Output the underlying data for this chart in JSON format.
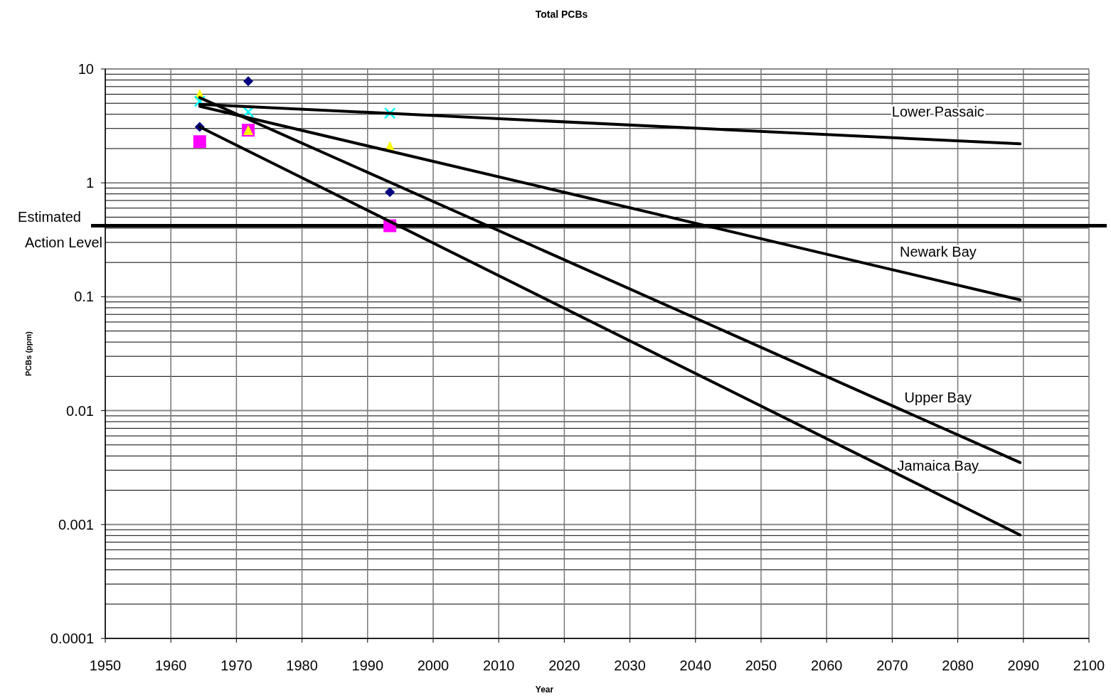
{
  "chart_data": {
    "type": "scatter",
    "title": "Total PCBs",
    "xlabel": "Year",
    "ylabel": "PCBs (ppm)",
    "xlim": [
      1950,
      2100
    ],
    "xticks": [
      1950,
      1960,
      1970,
      1980,
      1990,
      2000,
      2010,
      2020,
      2030,
      2040,
      2050,
      2060,
      2070,
      2080,
      2090,
      2100
    ],
    "ylim": [
      0.0001,
      10
    ],
    "yticks": [
      0.0001,
      0.001,
      0.01,
      0.1,
      1,
      10
    ],
    "log": "y",
    "grid": true,
    "series": [
      {
        "marker": "diamond",
        "color": "#000080",
        "x": [
          1964.4,
          1971.8,
          1993.4
        ],
        "values": [
          3.1,
          7.8,
          0.83
        ]
      },
      {
        "marker": "square",
        "color": "#ff00ff",
        "x": [
          1964.4,
          1971.8,
          1993.4
        ],
        "values": [
          2.3,
          2.9,
          0.42
        ]
      },
      {
        "marker": "triangle",
        "color": "#ffff00",
        "x": [
          1964.4,
          1971.8,
          1993.4
        ],
        "values": [
          6.0,
          2.9,
          2.1
        ]
      },
      {
        "marker": "cross",
        "color": "#00ffff",
        "x": [
          1964.4,
          1971.8,
          1993.4
        ],
        "values": [
          5.2,
          4.2,
          4.1
        ]
      },
      {
        "type": "line",
        "name": "Lower Passaic",
        "marker": "none",
        "color": "#000000",
        "x": [
          1964.4,
          2089.5
        ],
        "values": [
          4.9,
          2.2
        ]
      },
      {
        "type": "line",
        "name": "Newark Bay",
        "marker": "none",
        "color": "#000000",
        "x": [
          1964.4,
          2089.5
        ],
        "values": [
          4.7,
          0.094
        ]
      },
      {
        "type": "line",
        "name": "Upper Bay",
        "marker": "none",
        "color": "#000000",
        "x": [
          1964.4,
          2089.5
        ],
        "values": [
          5.6,
          0.0035
        ]
      },
      {
        "type": "line",
        "name": "Jamaica Bay",
        "marker": "none",
        "color": "#000000",
        "x": [
          1964.4,
          2089.5
        ],
        "values": [
          3.1,
          0.00081
        ]
      }
    ],
    "ref_lines": [
      {
        "axis": "y",
        "value": 0.42,
        "label": "Estimated Action Level",
        "color": "#000000"
      }
    ]
  }
}
